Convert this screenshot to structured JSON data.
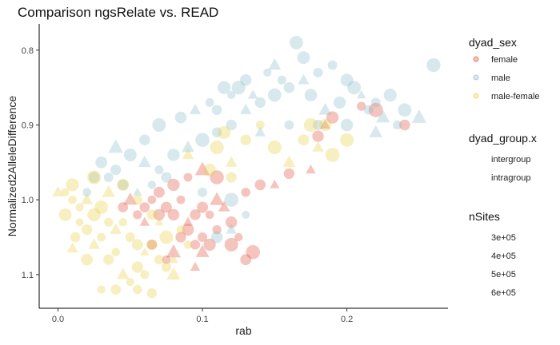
{
  "chart_data": {
    "type": "scatter",
    "title": "Comparison ngsRelate vs. READ",
    "xlabel": "rab",
    "ylabel": "Normalized2AlleleDifference",
    "xlim": [
      -0.013,
      0.27
    ],
    "ylim": [
      1.145,
      0.765
    ],
    "y_reversed": true,
    "x_ticks": [
      0.0,
      0.1,
      0.2
    ],
    "x_tick_labels": [
      "0.0",
      "0.1",
      "0.2"
    ],
    "y_ticks": [
      0.8,
      0.9,
      1.0,
      1.1
    ],
    "y_tick_labels": [
      "0.8",
      "0.9",
      "1.0",
      "1.1"
    ],
    "grid": false,
    "legend_placement": "right",
    "point_opacity": 0.3,
    "series": [
      {
        "name": "female",
        "color": "#D93A26",
        "points": [
          [
            0.075,
            1.01
          ],
          [
            0.08,
            1.02
          ],
          [
            0.085,
            1.0
          ],
          [
            0.09,
            1.03
          ],
          [
            0.095,
            1.02
          ],
          [
            0.1,
            1.01
          ],
          [
            0.105,
            1.02
          ],
          [
            0.11,
            1.0
          ],
          [
            0.09,
            1.04
          ],
          [
            0.085,
            1.05
          ],
          [
            0.095,
            1.06
          ],
          [
            0.1,
            1.07
          ],
          [
            0.105,
            1.06
          ],
          [
            0.065,
            1.0
          ],
          [
            0.07,
            0.99
          ],
          [
            0.06,
            1.03
          ],
          [
            0.08,
            0.98
          ],
          [
            0.11,
            1.04
          ],
          [
            0.12,
            1.03
          ],
          [
            0.115,
            1.01
          ],
          [
            0.13,
            0.99
          ],
          [
            0.125,
            1.05
          ],
          [
            0.11,
            0.97
          ],
          [
            0.1,
            0.96
          ],
          [
            0.09,
            0.97
          ],
          [
            0.14,
            0.98
          ],
          [
            0.135,
            1.07
          ],
          [
            0.15,
            0.98
          ],
          [
            0.16,
            0.965
          ],
          [
            0.18,
            0.915
          ],
          [
            0.19,
            0.89
          ],
          [
            0.185,
            0.9
          ],
          [
            0.21,
            0.875
          ],
          [
            0.22,
            0.88
          ],
          [
            0.24,
            0.9
          ],
          [
            0.175,
            0.96
          ],
          [
            0.07,
            1.02
          ],
          [
            0.06,
            1.01
          ],
          [
            0.055,
            1.02
          ],
          [
            0.05,
            1.0
          ],
          [
            0.045,
            1.01
          ],
          [
            0.065,
            1.06
          ],
          [
            0.075,
            1.08
          ],
          [
            0.08,
            1.07
          ],
          [
            0.1,
            1.05
          ],
          [
            0.12,
            1.06
          ],
          [
            0.13,
            1.08
          ],
          [
            0.095,
            1.09
          ]
        ]
      },
      {
        "name": "male",
        "color": "#7DB5C8",
        "points": [
          [
            0.03,
            0.95
          ],
          [
            0.04,
            0.96
          ],
          [
            0.05,
            0.94
          ],
          [
            0.06,
            0.95
          ],
          [
            0.07,
            0.96
          ],
          [
            0.035,
            0.97
          ],
          [
            0.045,
            0.98
          ],
          [
            0.055,
            0.99
          ],
          [
            0.065,
            0.98
          ],
          [
            0.075,
            0.97
          ],
          [
            0.08,
            0.94
          ],
          [
            0.09,
            0.93
          ],
          [
            0.1,
            0.92
          ],
          [
            0.11,
            0.91
          ],
          [
            0.12,
            0.9
          ],
          [
            0.13,
            0.88
          ],
          [
            0.14,
            0.87
          ],
          [
            0.15,
            0.86
          ],
          [
            0.16,
            0.85
          ],
          [
            0.17,
            0.84
          ],
          [
            0.18,
            0.83
          ],
          [
            0.19,
            0.82
          ],
          [
            0.2,
            0.84
          ],
          [
            0.21,
            0.86
          ],
          [
            0.22,
            0.87
          ],
          [
            0.23,
            0.86
          ],
          [
            0.24,
            0.88
          ],
          [
            0.25,
            0.89
          ],
          [
            0.26,
            0.82
          ],
          [
            0.165,
            0.79
          ],
          [
            0.17,
            0.81
          ],
          [
            0.15,
            0.82
          ],
          [
            0.13,
            0.84
          ],
          [
            0.12,
            0.86
          ],
          [
            0.11,
            0.88
          ],
          [
            0.14,
            0.91
          ],
          [
            0.16,
            0.9
          ],
          [
            0.18,
            0.9
          ],
          [
            0.2,
            0.9
          ],
          [
            0.22,
            0.91
          ],
          [
            0.1,
            0.99
          ],
          [
            0.12,
            1.0
          ],
          [
            0.13,
            1.02
          ],
          [
            0.12,
            1.04
          ],
          [
            0.11,
            1.05
          ],
          [
            0.025,
            0.97
          ],
          [
            0.02,
            0.99
          ],
          [
            0.04,
            0.93
          ],
          [
            0.06,
            0.92
          ],
          [
            0.07,
            0.9
          ],
          [
            0.085,
            0.89
          ],
          [
            0.095,
            0.88
          ],
          [
            0.105,
            0.87
          ],
          [
            0.115,
            0.85
          ],
          [
            0.125,
            0.85
          ],
          [
            0.135,
            0.86
          ],
          [
            0.145,
            0.83
          ],
          [
            0.155,
            0.84
          ],
          [
            0.175,
            0.86
          ],
          [
            0.185,
            0.88
          ],
          [
            0.195,
            0.87
          ],
          [
            0.205,
            0.85
          ],
          [
            0.215,
            0.88
          ],
          [
            0.225,
            0.89
          ],
          [
            0.235,
            0.9
          ]
        ]
      },
      {
        "name": "male-female",
        "color": "#E9C930",
        "points": [
          [
            0.005,
            0.99
          ],
          [
            0.01,
            1.0
          ],
          [
            0.015,
            1.01
          ],
          [
            0.02,
            1.0
          ],
          [
            0.025,
            1.02
          ],
          [
            0.03,
            1.01
          ],
          [
            0.035,
            1.03
          ],
          [
            0.04,
            1.04
          ],
          [
            0.045,
            1.03
          ],
          [
            0.05,
            1.05
          ],
          [
            0.055,
            1.06
          ],
          [
            0.06,
            1.07
          ],
          [
            0.065,
            1.06
          ],
          [
            0.07,
            1.08
          ],
          [
            0.075,
            1.09
          ],
          [
            0.08,
            1.1
          ],
          [
            0.06,
            1.1
          ],
          [
            0.055,
            1.12
          ],
          [
            0.05,
            1.11
          ],
          [
            0.045,
            1.1
          ],
          [
            0.04,
            1.07
          ],
          [
            0.035,
            1.08
          ],
          [
            0.03,
            1.05
          ],
          [
            0.025,
            1.06
          ],
          [
            0.02,
            1.04
          ],
          [
            0.015,
            1.03
          ],
          [
            0.01,
            0.98
          ],
          [
            0.0,
            0.99
          ],
          [
            0.005,
            1.02
          ],
          [
            0.012,
            1.05
          ],
          [
            0.025,
            0.97
          ],
          [
            0.035,
            0.99
          ],
          [
            0.045,
            0.98
          ],
          [
            0.055,
            1.0
          ],
          [
            0.065,
            1.02
          ],
          [
            0.07,
            1.03
          ],
          [
            0.075,
            1.05
          ],
          [
            0.085,
            1.04
          ],
          [
            0.09,
            1.06
          ],
          [
            0.08,
            1.08
          ],
          [
            0.065,
            1.125
          ],
          [
            0.03,
            1.12
          ],
          [
            0.02,
            1.08
          ],
          [
            0.01,
            1.065
          ],
          [
            0.04,
            1.12
          ],
          [
            0.055,
            1.09
          ],
          [
            0.11,
            0.93
          ],
          [
            0.12,
            0.95
          ],
          [
            0.13,
            0.92
          ],
          [
            0.14,
            0.9
          ],
          [
            0.15,
            0.93
          ],
          [
            0.16,
            0.95
          ],
          [
            0.17,
            0.92
          ],
          [
            0.175,
            0.9
          ],
          [
            0.185,
            0.9
          ],
          [
            0.18,
            0.93
          ],
          [
            0.19,
            0.94
          ],
          [
            0.2,
            0.92
          ],
          [
            0.12,
            0.97
          ],
          [
            0.09,
            0.94
          ],
          [
            0.105,
            0.96
          ],
          [
            0.115,
            0.91
          ]
        ]
      }
    ],
    "legends": [
      {
        "title": "dyad_sex",
        "items": [
          {
            "label": "female",
            "color": "#D93A26"
          },
          {
            "label": "male",
            "color": "#7DB5C8"
          },
          {
            "label": "male-female",
            "color": "#E9C930"
          }
        ]
      },
      {
        "title": "dyad_group.x",
        "items": [
          {
            "label": "intergroup",
            "shape": "circle"
          },
          {
            "label": "intragroup",
            "shape": "triangle"
          }
        ]
      },
      {
        "title": "nSites",
        "items": [
          {
            "label": "3e+05",
            "size": 300000.0
          },
          {
            "label": "4e+05",
            "size": 400000.0
          },
          {
            "label": "5e+05",
            "size": 500000.0
          },
          {
            "label": "6e+05",
            "size": 600000.0
          }
        ]
      }
    ]
  }
}
